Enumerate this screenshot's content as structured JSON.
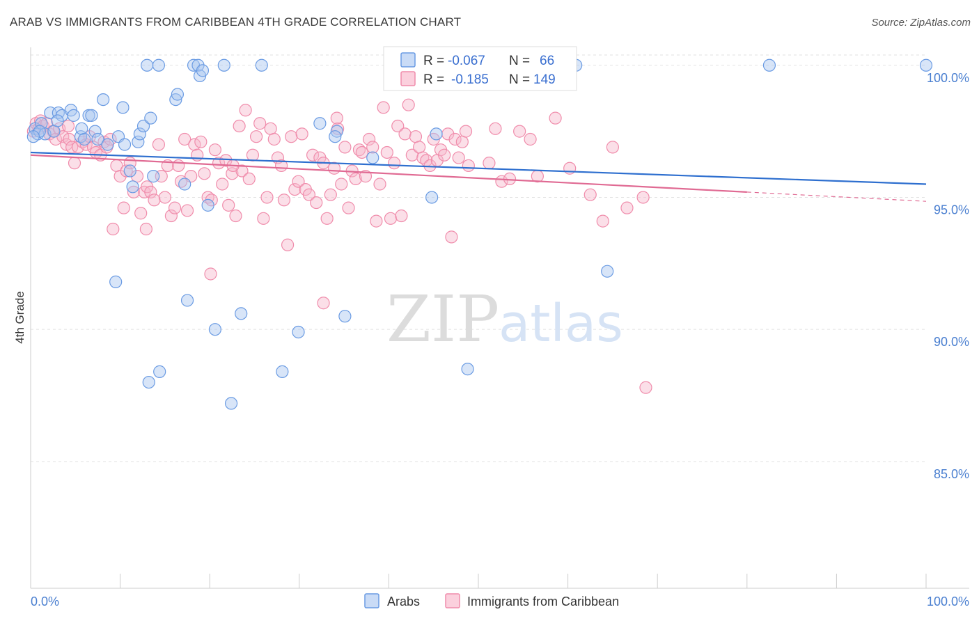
{
  "header": {
    "title": "ARAB VS IMMIGRANTS FROM CARIBBEAN 4TH GRADE CORRELATION CHART",
    "source": "Source: ZipAtlas.com"
  },
  "watermark": {
    "zip": "ZIP",
    "atlas": "atlas"
  },
  "legend_top": {
    "rows": [
      {
        "r_label": "R =",
        "r_value": "-0.067",
        "n_label": "N =",
        "n_value": "66"
      },
      {
        "r_label": "R =",
        "r_value": "-0.185",
        "n_label": "N =",
        "n_value": "149"
      }
    ]
  },
  "legend_bottom": {
    "arabs": "Arabs",
    "caribbean": "Immigrants from Caribbean"
  },
  "chart_data": {
    "type": "scatter",
    "title": "ARAB VS IMMIGRANTS FROM CARIBBEAN 4TH GRADE CORRELATION CHART",
    "xlabel": "",
    "ylabel": "4th Grade",
    "xlim": [
      0,
      100
    ],
    "ylim": [
      80.2,
      100.6
    ],
    "x_tick_labels": [
      "0.0%",
      "100.0%"
    ],
    "y_ticks": [
      85,
      90,
      95,
      100
    ],
    "y_tick_labels": [
      "85.0%",
      "90.0%",
      "95.0%",
      "100.0%"
    ],
    "grid": true,
    "legend_position": "top-center",
    "colors": {
      "arabs": "#6a9be3",
      "caribbean": "#f08cab",
      "arabs_line": "#2e6fcf",
      "caribbean_line": "#e06a93"
    },
    "series": [
      {
        "name": "Arabs",
        "r": -0.067,
        "n": 66,
        "trend": {
          "x": [
            0,
            100
          ],
          "y": [
            96.7,
            95.5
          ]
        },
        "points": [
          [
            0.5,
            97.6
          ],
          [
            0.8,
            97.4
          ],
          [
            1.2,
            97.8
          ],
          [
            1.6,
            97.4
          ],
          [
            2.2,
            98.2
          ],
          [
            2.6,
            97.5
          ],
          [
            3.1,
            98.2
          ],
          [
            3.5,
            98.1
          ],
          [
            4.5,
            98.3
          ],
          [
            4.8,
            98.1
          ],
          [
            5.6,
            97.3
          ],
          [
            5.7,
            97.6
          ],
          [
            6.5,
            98.1
          ],
          [
            6.8,
            98.1
          ],
          [
            7.2,
            97.5
          ],
          [
            7.5,
            97.2
          ],
          [
            8.1,
            98.7
          ],
          [
            8.6,
            97.0
          ],
          [
            9.8,
            97.3
          ],
          [
            10.3,
            98.4
          ],
          [
            10.5,
            97.0
          ],
          [
            11.1,
            96.0
          ],
          [
            11.4,
            95.4
          ],
          [
            12.0,
            97.1
          ],
          [
            12.2,
            97.4
          ],
          [
            12.6,
            97.7
          ],
          [
            13.4,
            98.0
          ],
          [
            13.7,
            95.8
          ],
          [
            13.0,
            100.0
          ],
          [
            14.3,
            100.0
          ],
          [
            16.2,
            98.7
          ],
          [
            16.4,
            98.9
          ],
          [
            17.2,
            95.5
          ],
          [
            18.2,
            100.0
          ],
          [
            18.7,
            100.0
          ],
          [
            18.9,
            99.6
          ],
          [
            19.2,
            99.8
          ],
          [
            19.8,
            94.7
          ],
          [
            21.6,
            100.0
          ],
          [
            25.8,
            100.0
          ],
          [
            9.5,
            91.8
          ],
          [
            17.5,
            91.1
          ],
          [
            20.6,
            90.0
          ],
          [
            23.5,
            90.6
          ],
          [
            14.4,
            88.4
          ],
          [
            13.2,
            88.0
          ],
          [
            22.4,
            87.2
          ],
          [
            28.1,
            88.4
          ],
          [
            29.9,
            89.9
          ],
          [
            32.3,
            97.8
          ],
          [
            34.2,
            97.5
          ],
          [
            34.0,
            97.3
          ],
          [
            35.1,
            90.5
          ],
          [
            38.2,
            96.5
          ],
          [
            44.8,
            95.0
          ],
          [
            45.3,
            97.4
          ],
          [
            47.5,
            100.0
          ],
          [
            48.8,
            88.5
          ],
          [
            60.9,
            100.0
          ],
          [
            64.4,
            92.2
          ],
          [
            82.5,
            100.0
          ],
          [
            100.0,
            100.0
          ],
          [
            1.0,
            97.5
          ],
          [
            3.0,
            97.9
          ],
          [
            6.0,
            97.2
          ],
          [
            0.3,
            97.3
          ]
        ]
      },
      {
        "name": "Immigrants from Caribbean",
        "r": -0.185,
        "n": 149,
        "trend": {
          "x": [
            0,
            80
          ],
          "y": [
            96.6,
            95.2
          ]
        },
        "trend_dashed": {
          "x": [
            80,
            100
          ],
          "y": [
            95.2,
            94.85
          ]
        },
        "points": [
          [
            0.3,
            97.5
          ],
          [
            0.6,
            97.8
          ],
          [
            0.9,
            97.6
          ],
          [
            1.1,
            97.9
          ],
          [
            1.4,
            97.7
          ],
          [
            1.8,
            97.8
          ],
          [
            2.1,
            97.4
          ],
          [
            2.5,
            97.5
          ],
          [
            2.8,
            97.2
          ],
          [
            3.2,
            97.6
          ],
          [
            3.6,
            97.3
          ],
          [
            4.0,
            97.0
          ],
          [
            4.3,
            97.2
          ],
          [
            4.6,
            96.9
          ],
          [
            4.9,
            96.3
          ],
          [
            5.3,
            96.9
          ],
          [
            5.8,
            97.1
          ],
          [
            6.2,
            97.0
          ],
          [
            6.6,
            97.3
          ],
          [
            7.0,
            96.9
          ],
          [
            7.3,
            96.7
          ],
          [
            7.8,
            96.6
          ],
          [
            8.2,
            97.1
          ],
          [
            8.5,
            96.9
          ],
          [
            8.9,
            97.2
          ],
          [
            9.2,
            93.8
          ],
          [
            9.6,
            96.2
          ],
          [
            10.0,
            95.8
          ],
          [
            10.4,
            94.6
          ],
          [
            10.7,
            96.0
          ],
          [
            11.1,
            96.3
          ],
          [
            11.5,
            95.2
          ],
          [
            11.9,
            95.8
          ],
          [
            12.3,
            94.4
          ],
          [
            12.7,
            95.2
          ],
          [
            13.0,
            95.4
          ],
          [
            13.4,
            95.2
          ],
          [
            13.8,
            94.9
          ],
          [
            14.3,
            97.0
          ],
          [
            14.6,
            95.8
          ],
          [
            15.0,
            95.0
          ],
          [
            15.3,
            96.2
          ],
          [
            15.7,
            94.3
          ],
          [
            16.1,
            94.6
          ],
          [
            16.5,
            96.2
          ],
          [
            16.8,
            95.6
          ],
          [
            17.2,
            97.2
          ],
          [
            17.5,
            94.5
          ],
          [
            17.9,
            95.8
          ],
          [
            18.3,
            97.0
          ],
          [
            18.6,
            96.6
          ],
          [
            19.0,
            97.1
          ],
          [
            19.4,
            95.9
          ],
          [
            19.8,
            95.0
          ],
          [
            20.2,
            94.9
          ],
          [
            20.6,
            96.8
          ],
          [
            21.0,
            96.3
          ],
          [
            21.4,
            95.5
          ],
          [
            21.8,
            96.4
          ],
          [
            22.1,
            94.7
          ],
          [
            22.5,
            95.9
          ],
          [
            22.9,
            94.3
          ],
          [
            23.3,
            97.7
          ],
          [
            23.6,
            96.0
          ],
          [
            24.0,
            98.3
          ],
          [
            24.4,
            95.7
          ],
          [
            24.8,
            96.6
          ],
          [
            25.2,
            97.3
          ],
          [
            25.6,
            97.8
          ],
          [
            26.0,
            94.2
          ],
          [
            26.4,
            95.0
          ],
          [
            26.8,
            97.6
          ],
          [
            27.2,
            97.2
          ],
          [
            27.6,
            96.5
          ],
          [
            28.0,
            96.2
          ],
          [
            28.3,
            94.9
          ],
          [
            28.7,
            93.2
          ],
          [
            29.1,
            97.3
          ],
          [
            29.5,
            95.3
          ],
          [
            29.9,
            95.6
          ],
          [
            30.3,
            97.4
          ],
          [
            30.7,
            95.3
          ],
          [
            31.1,
            95.1
          ],
          [
            31.5,
            96.6
          ],
          [
            31.9,
            94.8
          ],
          [
            32.3,
            96.5
          ],
          [
            32.7,
            96.3
          ],
          [
            33.1,
            94.2
          ],
          [
            33.5,
            95.1
          ],
          [
            33.9,
            96.1
          ],
          [
            34.3,
            97.6
          ],
          [
            34.7,
            95.5
          ],
          [
            35.1,
            96.9
          ],
          [
            35.5,
            94.6
          ],
          [
            35.9,
            96.0
          ],
          [
            36.3,
            95.7
          ],
          [
            36.7,
            96.8
          ],
          [
            37.0,
            96.7
          ],
          [
            37.4,
            95.8
          ],
          [
            37.8,
            97.2
          ],
          [
            38.2,
            96.9
          ],
          [
            38.6,
            94.1
          ],
          [
            39.0,
            95.5
          ],
          [
            39.4,
            98.4
          ],
          [
            39.8,
            96.7
          ],
          [
            40.2,
            94.2
          ],
          [
            40.6,
            96.3
          ],
          [
            41.0,
            97.7
          ],
          [
            41.4,
            94.3
          ],
          [
            41.8,
            97.4
          ],
          [
            42.2,
            98.5
          ],
          [
            42.6,
            96.6
          ],
          [
            43.0,
            97.3
          ],
          [
            43.4,
            96.9
          ],
          [
            43.8,
            96.5
          ],
          [
            44.2,
            96.4
          ],
          [
            44.6,
            96.2
          ],
          [
            45.0,
            97.2
          ],
          [
            45.4,
            96.4
          ],
          [
            45.8,
            96.8
          ],
          [
            46.2,
            96.6
          ],
          [
            46.6,
            97.4
          ],
          [
            47.0,
            93.5
          ],
          [
            47.4,
            97.2
          ],
          [
            47.8,
            96.5
          ],
          [
            48.2,
            97.1
          ],
          [
            48.6,
            97.5
          ],
          [
            48.9,
            96.2
          ],
          [
            51.2,
            96.3
          ],
          [
            51.9,
            97.6
          ],
          [
            52.6,
            95.6
          ],
          [
            53.5,
            95.7
          ],
          [
            54.6,
            97.5
          ],
          [
            55.8,
            97.2
          ],
          [
            56.6,
            95.8
          ],
          [
            58.6,
            98.0
          ],
          [
            60.2,
            96.1
          ],
          [
            62.5,
            95.1
          ],
          [
            63.9,
            94.1
          ],
          [
            65.0,
            96.9
          ],
          [
            20.1,
            92.1
          ],
          [
            32.7,
            91.0
          ],
          [
            34.2,
            98.0
          ],
          [
            66.6,
            94.6
          ],
          [
            68.4,
            95.0
          ],
          [
            68.7,
            87.8
          ],
          [
            4.2,
            97.7
          ],
          [
            12.9,
            93.8
          ],
          [
            22.6,
            96.2
          ]
        ]
      }
    ]
  }
}
